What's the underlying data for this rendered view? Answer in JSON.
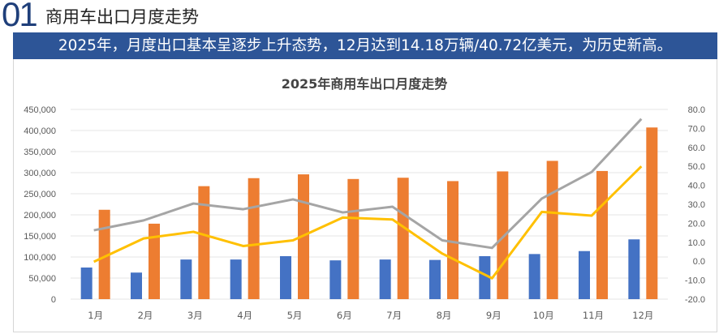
{
  "header": {
    "number": "01",
    "title": "商用车出口月度走势"
  },
  "banner": {
    "text": "2025年，月度出口基本呈逐步上升态势，12月达到14.18万辆/40.72亿美元，为历史新高。"
  },
  "chart_data": {
    "type": "bar",
    "title": "2025年商用车出口月度走势",
    "categories": [
      "1月",
      "2月",
      "3月",
      "4月",
      "5月",
      "6月",
      "7月",
      "8月",
      "9月",
      "10月",
      "11月",
      "12月"
    ],
    "y_left": {
      "ylim": [
        0,
        450000
      ],
      "ticks": [
        "0",
        "50,000",
        "100,000",
        "150,000",
        "200,000",
        "250,000",
        "300,000",
        "350,000",
        "400,000",
        "450,000"
      ]
    },
    "y_right": {
      "ylim": [
        -20,
        80
      ],
      "ticks": [
        "-20.0",
        "-10.0",
        "0.0",
        "10.0",
        "20.0",
        "30.0",
        "40.0",
        "50.0",
        "60.0",
        "70.0",
        "80.0"
      ]
    },
    "grid": true,
    "legend": "none",
    "series": [
      {
        "type": "bar",
        "axis": "left",
        "color": "#4472c4",
        "values": [
          75000,
          63000,
          94000,
          94000,
          102000,
          92000,
          94000,
          93000,
          102000,
          107000,
          114000,
          141800
        ]
      },
      {
        "type": "bar",
        "axis": "left",
        "color": "#ed7d31",
        "values": [
          212000,
          179000,
          268000,
          287000,
          296000,
          285000,
          288000,
          280000,
          303000,
          328000,
          304000,
          407200
        ]
      },
      {
        "type": "line",
        "axis": "right",
        "color": "#a5a5a5",
        "values": [
          16.3,
          21.5,
          30.4,
          27.4,
          32.6,
          25.7,
          28.7,
          11.0,
          7.0,
          33.0,
          47.0,
          75.0
        ]
      },
      {
        "type": "line",
        "axis": "right",
        "color": "#ffc000",
        "values": [
          -0.3,
          12.0,
          15.5,
          8.0,
          11.0,
          23.0,
          22.0,
          4.0,
          -9.0,
          26.0,
          24.0,
          50.0
        ]
      }
    ]
  }
}
